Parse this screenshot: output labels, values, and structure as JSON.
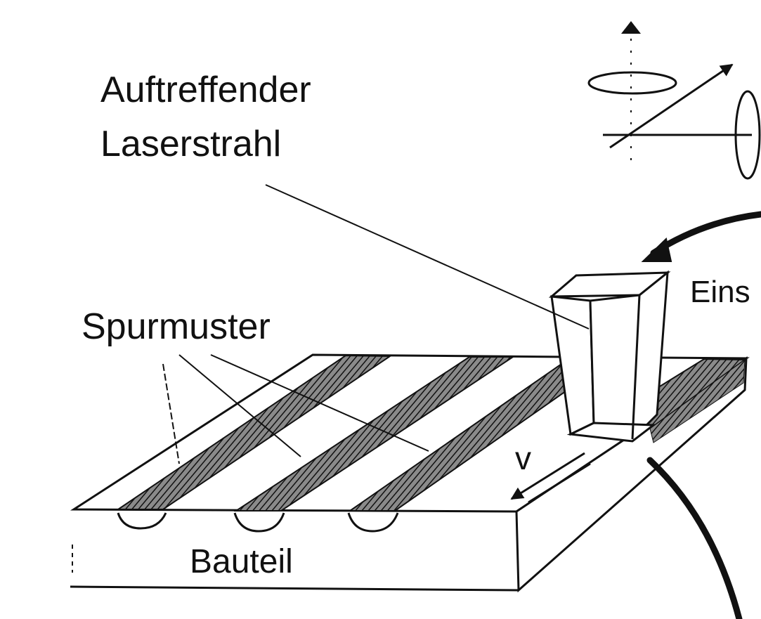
{
  "labels": {
    "incident_beam_line1": "Auftreffender",
    "incident_beam_line2": "Laserstrahl",
    "track_pattern": "Spurmuster",
    "component": "Bauteil",
    "velocity": "v",
    "cut_off_label": "Eins"
  },
  "colors": {
    "ink": "#111111",
    "background": "#ffffff",
    "track_fill": "#5a5a5a"
  },
  "icons": [
    "rotation-axes-icon",
    "feed-arrow-icon",
    "curved-arrow-icon"
  ]
}
